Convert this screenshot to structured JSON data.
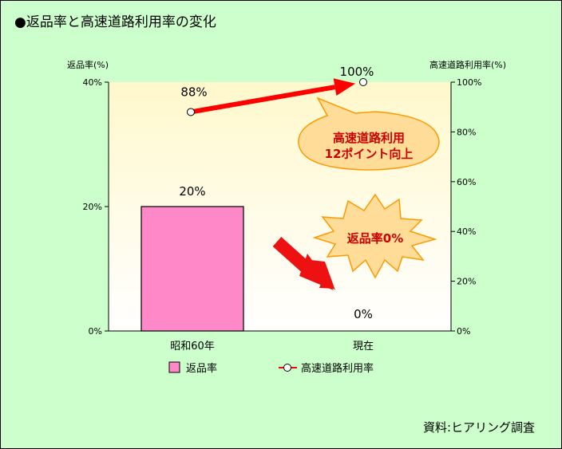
{
  "title": "●返品率と高速道路利用率の変化",
  "source": "資料:ヒアリング調査",
  "chart_data": {
    "type": "bar",
    "categories": [
      "昭和60年",
      "現在"
    ],
    "left_axis": {
      "label": "返品率(%)",
      "ylim": [
        0,
        40
      ],
      "ticks": [
        "0%",
        "20%",
        "40%"
      ]
    },
    "right_axis": {
      "label": "高速道路利用率(%)",
      "ylim": [
        0,
        100
      ],
      "ticks": [
        "0%",
        "20%",
        "40%",
        "60%",
        "80%",
        "100%"
      ]
    },
    "series": [
      {
        "name": "返品率",
        "kind": "bar",
        "axis": "left",
        "values": [
          20,
          0
        ],
        "labels": [
          "20%",
          "0%"
        ],
        "color": "#ff88c8"
      },
      {
        "name": "高速道路利用率",
        "kind": "line",
        "axis": "right",
        "values": [
          88,
          100
        ],
        "labels": [
          "88%",
          "100%"
        ],
        "color": "#ff0000"
      }
    ],
    "annotations": [
      {
        "shape": "speech-bubble",
        "lines": [
          "高速道路利用",
          "12ポイント向上"
        ],
        "color": "#cc0000"
      },
      {
        "shape": "starburst",
        "text": "返品率0%",
        "color": "#cc0000"
      }
    ],
    "legend": "bottom",
    "grid": false
  }
}
